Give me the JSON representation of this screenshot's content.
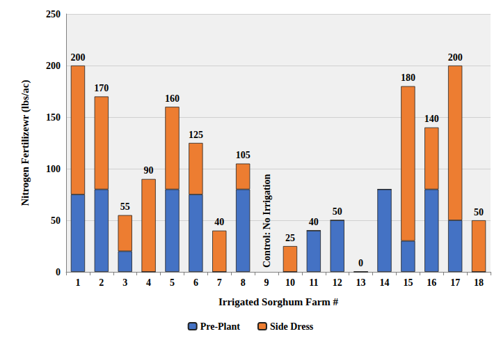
{
  "chart_data": {
    "type": "bar",
    "stacked": true,
    "x_label": "Irrigated Sorghum Farm #",
    "y_label": "Nitrogen Fertilizewr (lbs/ac)",
    "categories": [
      "1",
      "2",
      "3",
      "4",
      "5",
      "6",
      "7",
      "8",
      "9",
      "10",
      "11",
      "12",
      "13",
      "14",
      "15",
      "16",
      "17",
      "18"
    ],
    "series": [
      {
        "name": "Pre-Plant",
        "color": "#4472c4",
        "values": [
          75,
          80,
          20,
          0,
          80,
          75,
          0,
          80,
          null,
          0,
          40,
          50,
          0,
          80,
          30,
          80,
          50,
          0
        ]
      },
      {
        "name": "Side Dress",
        "color": "#ed7d31",
        "values": [
          125,
          90,
          35,
          90,
          80,
          50,
          40,
          25,
          null,
          25,
          0,
          0,
          0,
          0,
          150,
          60,
          150,
          50
        ]
      }
    ],
    "totals": [
      200,
      170,
      55,
      90,
      160,
      125,
      40,
      105,
      null,
      25,
      40,
      50,
      0,
      null,
      180,
      140,
      200,
      50
    ],
    "annotations": [
      {
        "x": "9",
        "text": "Control: No Irrigation"
      }
    ],
    "ylim": [
      0,
      250
    ],
    "yticks": [
      0,
      50,
      100,
      150,
      200,
      250
    ],
    "grid": true,
    "legend": "bottom"
  }
}
